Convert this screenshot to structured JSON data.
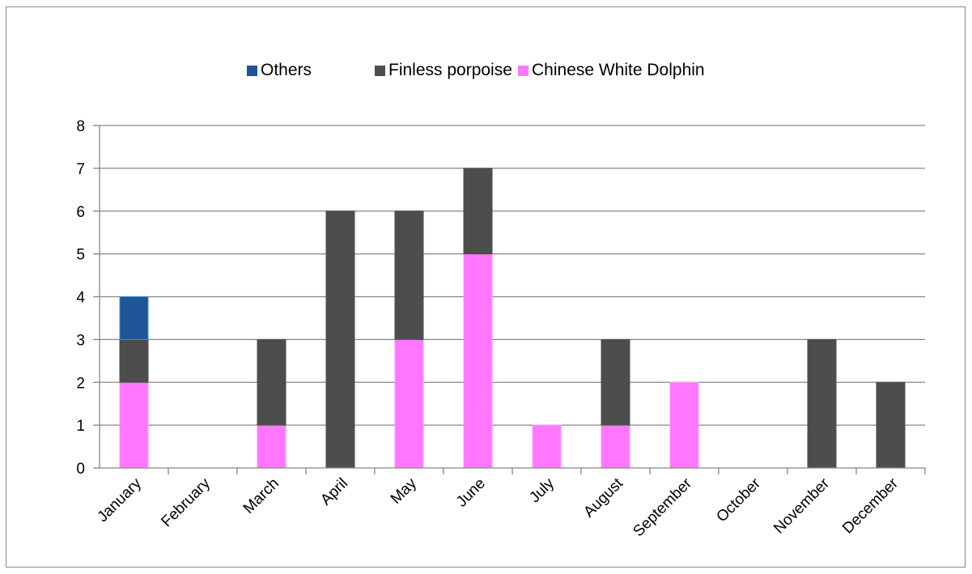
{
  "chart_data": {
    "type": "bar",
    "stacked": true,
    "categories": [
      "January",
      "February",
      "March",
      "April",
      "May",
      "June",
      "July",
      "August",
      "September",
      "October",
      "November",
      "December"
    ],
    "series": [
      {
        "name": "Chinese White Dolphin",
        "color": "#ff77ff",
        "values": [
          2,
          0,
          1,
          0,
          3,
          5,
          1,
          1,
          2,
          0,
          0,
          0
        ]
      },
      {
        "name": "Finless porpoise",
        "color": "#4d4d4d",
        "values": [
          1,
          0,
          2,
          6,
          3,
          2,
          0,
          2,
          0,
          0,
          3,
          2
        ]
      },
      {
        "name": "Others",
        "color": "#1f5596",
        "values": [
          1,
          0,
          0,
          0,
          0,
          0,
          0,
          0,
          0,
          0,
          0,
          0
        ]
      }
    ],
    "legend_order": [
      "Others",
      "Finless porpoise",
      "Chinese White Dolphin"
    ],
    "y_ticks": [
      "0",
      "1",
      "2",
      "3",
      "4",
      "5",
      "6",
      "7",
      "8"
    ],
    "ylim": [
      0,
      8
    ],
    "grid": true,
    "legend_position": "top"
  }
}
